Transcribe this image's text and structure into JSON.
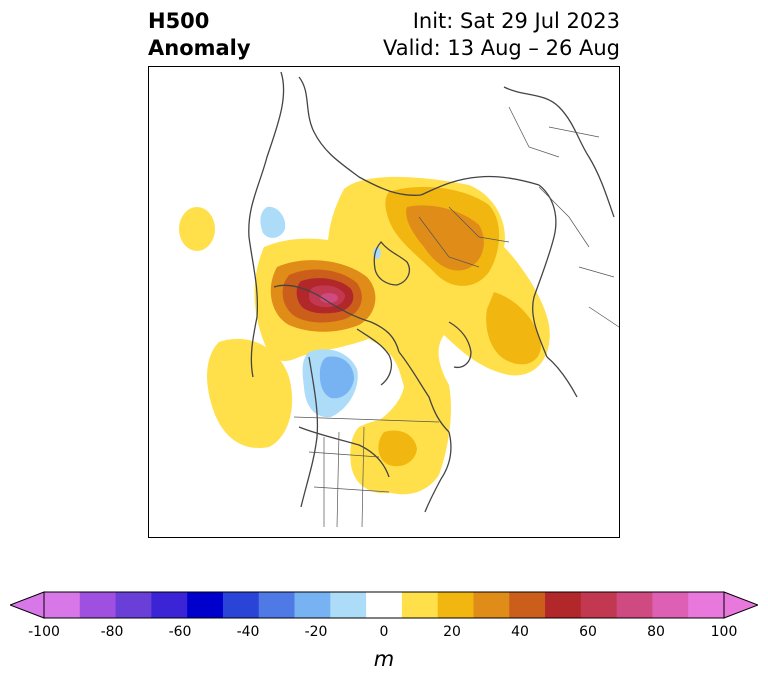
{
  "title": {
    "left_line1": "H500",
    "left_line2": "Anomaly",
    "init": "Init: Sat 29 Jul 2023",
    "valid": "Valid: 13 Aug – 26 Aug"
  },
  "colorbar": {
    "unit": "m",
    "ticks": [
      "-100",
      "-80",
      "-60",
      "-40",
      "-20",
      "0",
      "20",
      "40",
      "60",
      "80",
      "100"
    ],
    "colors": [
      "#d878e8",
      "#9f50e0",
      "#6a3fd8",
      "#3a24d6",
      "#0000cc",
      "#2b44d8",
      "#4f7ae6",
      "#77b3f2",
      "#acdcf8",
      "#ffffff",
      "#ffe04a",
      "#f2b610",
      "#df8c18",
      "#cc5e1c",
      "#b2282a",
      "#c23850",
      "#cf4a80",
      "#de60b4",
      "#e878dc"
    ],
    "under_color": "#d878e8",
    "over_color": "#e878dc"
  }
}
